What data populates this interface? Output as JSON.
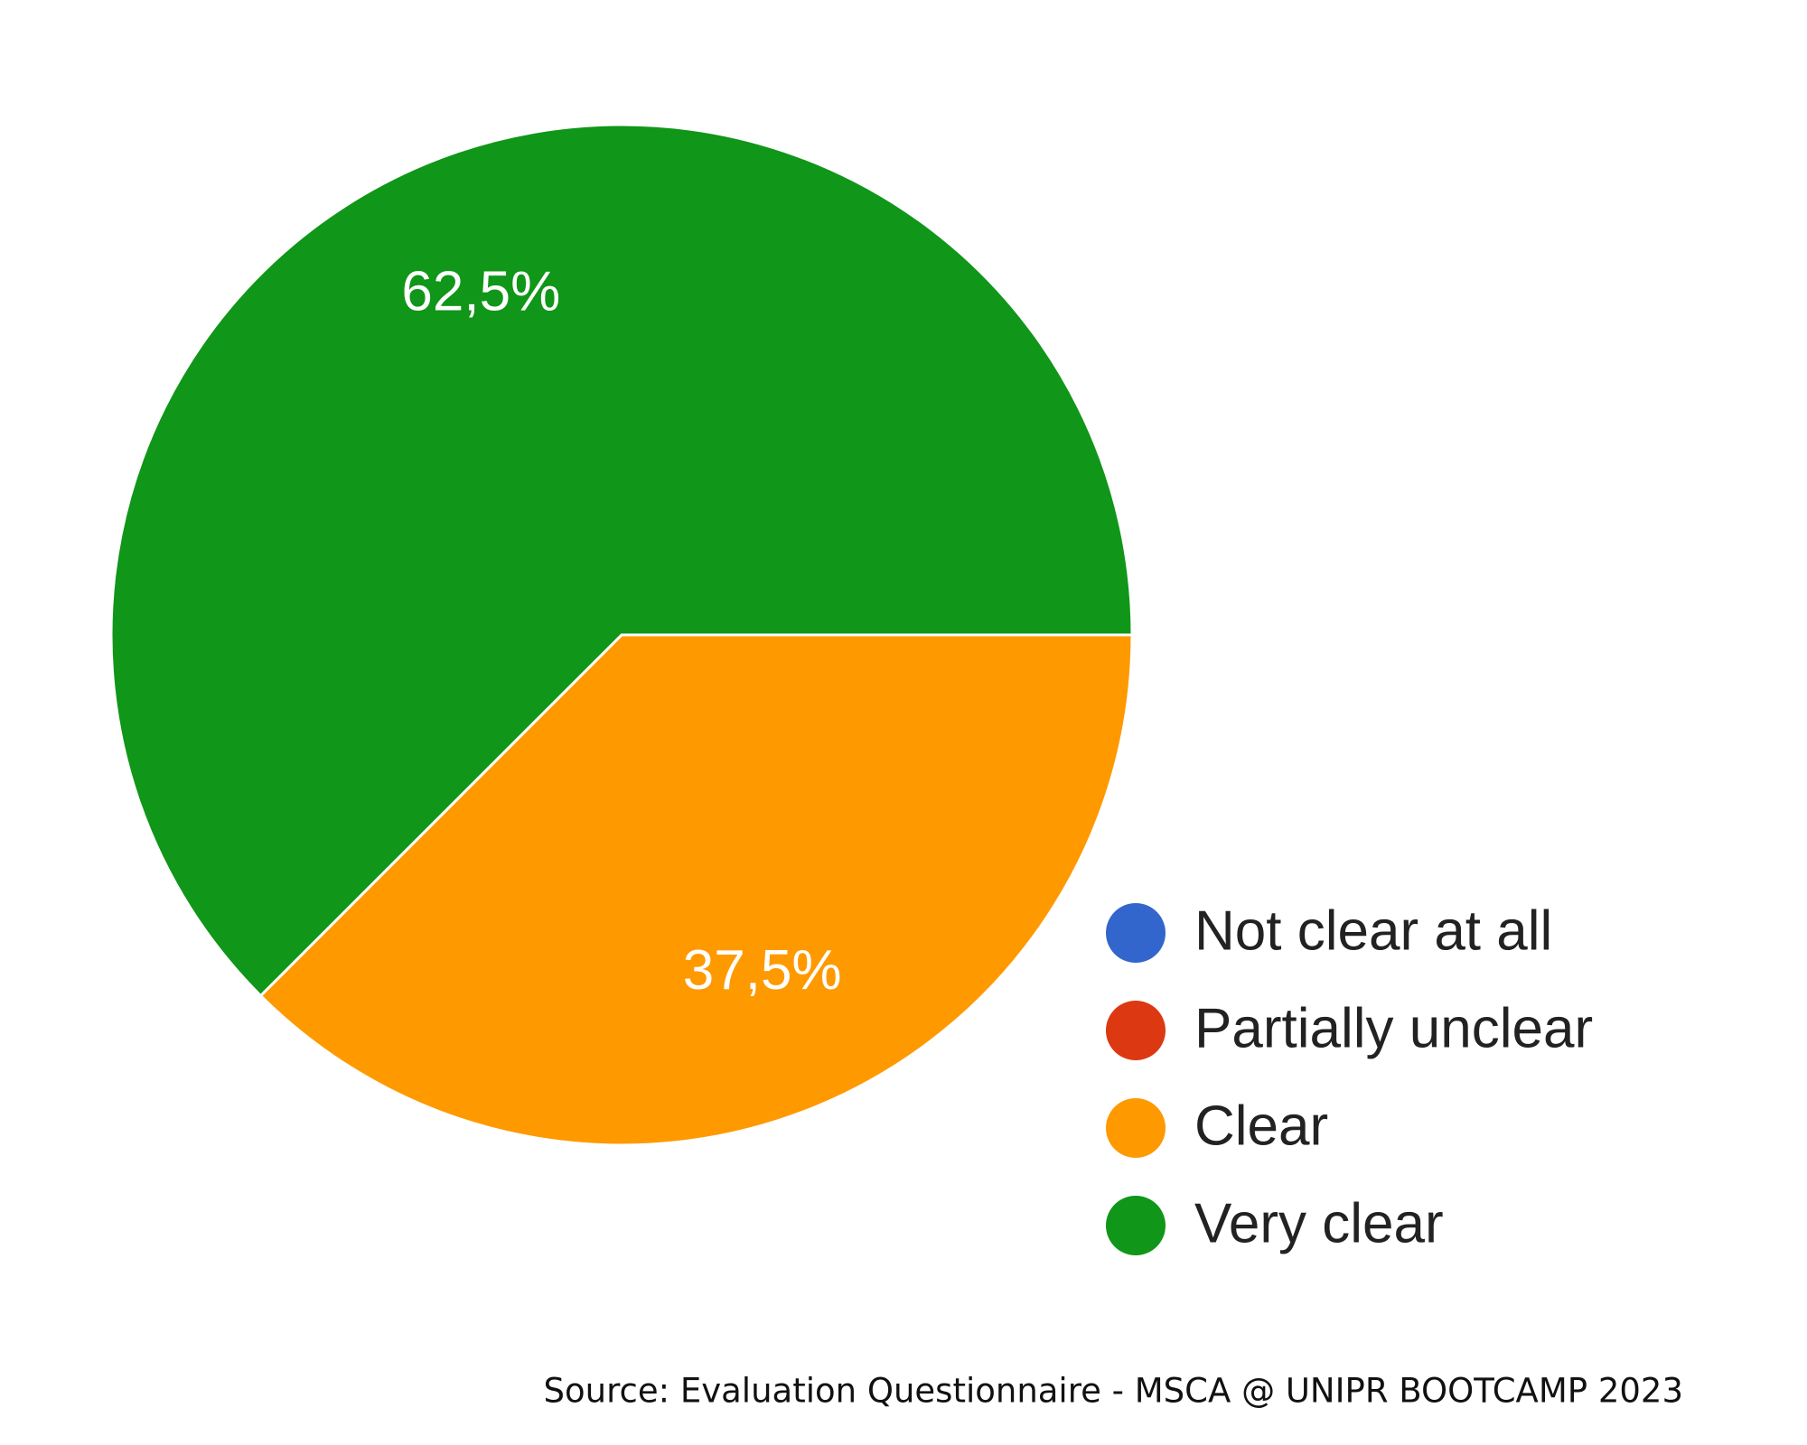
{
  "chart_data": {
    "type": "pie",
    "categories": [
      "Not clear at all",
      "Partially unclear",
      "Clear",
      "Very clear"
    ],
    "values": [
      0,
      0,
      37.5,
      62.5
    ],
    "value_labels": [
      null,
      null,
      "37,5%",
      "62,5%"
    ],
    "colors": [
      "#3366cc",
      "#dc3912",
      "#ff9900",
      "#109618"
    ],
    "legend": "right",
    "source": "Source: Evaluation Questionnaire - MSCA @ UNIPR BOOTCAMP 2023"
  }
}
